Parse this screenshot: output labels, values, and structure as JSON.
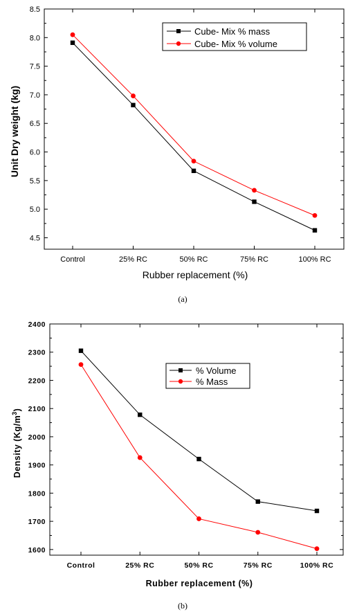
{
  "chart_data": [
    {
      "type": "line",
      "caption": "(a)",
      "categories": [
        "Control",
        "25% RC",
        "50% RC",
        "75% RC",
        "100% RC"
      ],
      "xlabel": "Rubber replacement (%)",
      "ylabel": "Unit Dry weight (kg)",
      "ylim": [
        4.3,
        8.5
      ],
      "yticks": [
        4.5,
        5.0,
        5.5,
        6.0,
        6.5,
        7.0,
        7.5,
        8.0,
        8.5
      ],
      "ytick_labels": [
        "4.5",
        "5.0",
        "5.5",
        "6.0",
        "6.5",
        "7.0",
        "7.5",
        "8.0",
        "8.5"
      ],
      "legend_position": "top-right",
      "grid": false,
      "series": [
        {
          "name": "Cube- Mix  % mass",
          "color": "#000000",
          "marker": "square",
          "values": [
            7.91,
            6.82,
            5.67,
            5.13,
            4.63
          ]
        },
        {
          "name": "Cube- Mix  % volume",
          "color": "#ff0000",
          "marker": "circle",
          "values": [
            8.05,
            6.98,
            5.84,
            5.33,
            4.89
          ]
        }
      ]
    },
    {
      "type": "line",
      "caption": "(b)",
      "categories": [
        "Control",
        "25% RC",
        "50% RC",
        "75% RC",
        "100% RC"
      ],
      "xlabel": "Rubber replacement (%)",
      "ylabel": "Density (Kg/m",
      "ylabel_sup": "3",
      "ylabel_end": ")",
      "ylim": [
        1580,
        2400
      ],
      "yticks": [
        1600,
        1700,
        1800,
        1900,
        2000,
        2100,
        2200,
        2300,
        2400
      ],
      "ytick_labels": [
        "1600",
        "1700",
        "1800",
        "1900",
        "2000",
        "2100",
        "2200",
        "2300",
        "2400"
      ],
      "legend_position": "center-right",
      "grid": false,
      "series": [
        {
          "name": "% Volume",
          "color": "#000000",
          "marker": "square",
          "values": [
            2305,
            2078,
            1921,
            1770,
            1737
          ]
        },
        {
          "name": "% Mass",
          "color": "#ff0000",
          "marker": "circle",
          "values": [
            2256,
            1926,
            1709,
            1661,
            1603
          ]
        }
      ]
    }
  ]
}
